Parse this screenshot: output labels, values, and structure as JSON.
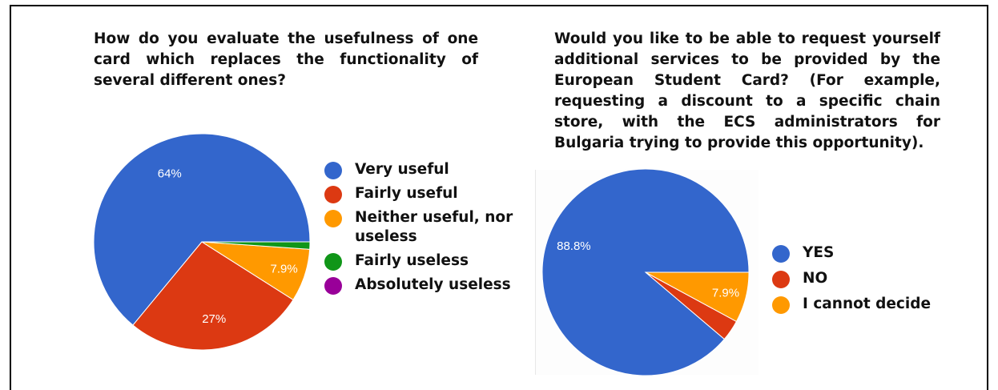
{
  "chart_data": [
    {
      "type": "pie",
      "title": "How do you evaluate the usefulness of one card which replaces the functionality of several different ones?",
      "legend_position": "right",
      "slices": [
        {
          "name": "Very useful",
          "value": 64,
          "label": "64%",
          "color": "#3366cc"
        },
        {
          "name": "Fairly useful",
          "value": 27,
          "label": "27%",
          "color": "#dc3912"
        },
        {
          "name": "Neither useful, nor useless",
          "value": 7.9,
          "label": "7.9%",
          "color": "#ff9900"
        },
        {
          "name": "Fairly useless",
          "value": 1.1,
          "label": "",
          "color": "#109618"
        },
        {
          "name": "Absolutely useless",
          "value": 0,
          "label": "",
          "color": "#990099"
        }
      ]
    },
    {
      "type": "pie",
      "title": "Would you like to be able to request yourself additional services to be provided by the European Student Card? (For example, requesting a discount to a specific chain store, with the ECS administrators for Bulgaria trying to provide this opportunity).",
      "legend_position": "right",
      "slices": [
        {
          "name": "YES",
          "value": 88.8,
          "label": "88.8%",
          "color": "#3366cc"
        },
        {
          "name": "NO",
          "value": 3.3,
          "label": "",
          "color": "#dc3912"
        },
        {
          "name": "I cannot decide",
          "value": 7.9,
          "label": "7.9%",
          "color": "#ff9900"
        }
      ]
    }
  ]
}
